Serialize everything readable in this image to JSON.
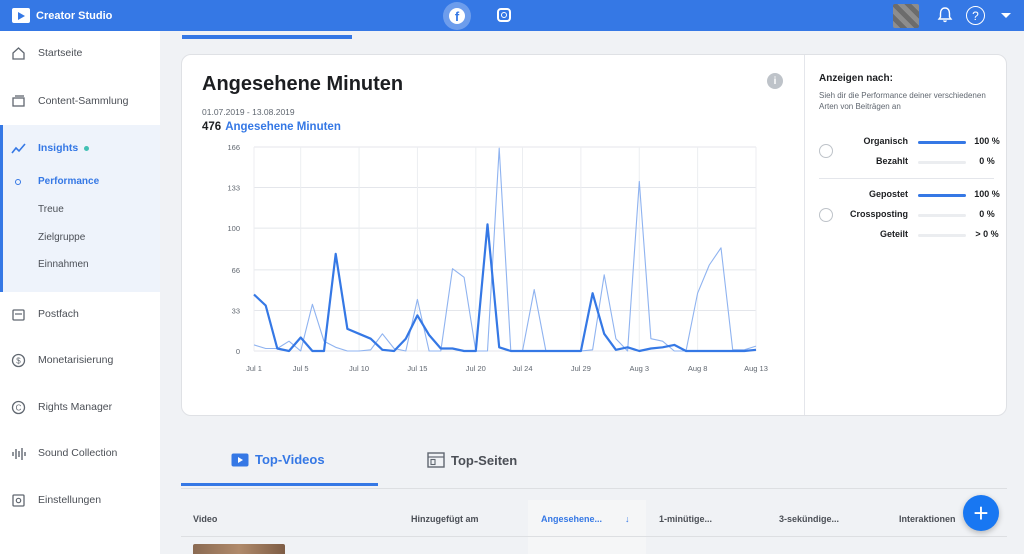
{
  "app": {
    "title": "Creator Studio",
    "platforms": [
      "facebook-icon",
      "instagram-icon"
    ],
    "help_label": "?"
  },
  "sidebar": {
    "items": [
      {
        "label": "Startseite",
        "icon": "home-icon"
      },
      {
        "label": "Content-Sammlung",
        "icon": "library-icon"
      },
      {
        "label": "Insights",
        "icon": "insights-icon"
      },
      {
        "label": "Postfach",
        "icon": "inbox-icon"
      },
      {
        "label": "Monetarisierung",
        "icon": "dollar-icon"
      },
      {
        "label": "Rights Manager",
        "icon": "copyright-icon"
      },
      {
        "label": "Sound Collection",
        "icon": "sound-icon"
      },
      {
        "label": "Einstellungen",
        "icon": "settings-icon"
      }
    ],
    "sub_items": [
      "Performance",
      "Treue",
      "Zielgruppe",
      "Einnahmen"
    ]
  },
  "card": {
    "title": "Angesehene Minuten",
    "info_label": "i",
    "date_range": "01.07.2019 - 13.08.2019",
    "total_value": "476",
    "total_label": "Angesehene Minuten"
  },
  "chart_data": {
    "type": "line",
    "ylim": [
      0,
      166
    ],
    "yticks": [
      0,
      33,
      66,
      100,
      133,
      166
    ],
    "xtick_labels": [
      "Jul 1",
      "Jul 5",
      "Jul 10",
      "Jul 15",
      "Jul 20",
      "Jul 24",
      "Jul 29",
      "Aug 3",
      "Aug 8",
      "Aug 13"
    ],
    "xtick_days": [
      0,
      4,
      9,
      14,
      19,
      23,
      28,
      33,
      38,
      43
    ],
    "grid": true,
    "colors": {
      "series1": "#3578e5",
      "series2": "#8fb3f0"
    },
    "series": [
      {
        "values": [
          46,
          37,
          2,
          0,
          11,
          0,
          0,
          79,
          18,
          14,
          10,
          1,
          0,
          10,
          29,
          13,
          2,
          2,
          0,
          0,
          103,
          3,
          0,
          0,
          0,
          0,
          0,
          0,
          0,
          47,
          14,
          1,
          3,
          0,
          2,
          3,
          5,
          0,
          0,
          0,
          0,
          0,
          0,
          1
        ]
      },
      {
        "values": [
          5,
          2,
          2,
          8,
          0,
          38,
          8,
          3,
          0,
          0,
          1,
          14,
          2,
          0,
          42,
          0,
          0,
          67,
          60,
          0,
          0,
          165,
          0,
          0,
          50,
          0,
          0,
          0,
          0,
          1,
          62,
          10,
          0,
          138,
          10,
          8,
          0,
          0,
          47,
          70,
          84,
          1,
          1,
          4
        ]
      }
    ]
  },
  "filter_panel": {
    "title": "Anzeigen nach:",
    "description": "Sieh dir die Performance deiner verschiedenen Arten von Beiträgen an",
    "group1": [
      {
        "label": "Organisch",
        "value_text": "100 %",
        "fraction": 1.0
      },
      {
        "label": "Bezahlt",
        "value_text": "0 %",
        "fraction": 0.0
      }
    ],
    "group2": [
      {
        "label": "Gepostet",
        "value_text": "100 %",
        "fraction": 1.0
      },
      {
        "label": "Crossposting",
        "value_text": "0 %",
        "fraction": 0.0
      },
      {
        "label": "Geteilt",
        "value_text": "> 0 %",
        "fraction": 0.0
      }
    ]
  },
  "tabs": {
    "videos": "Top-Videos",
    "pages": "Top-Seiten"
  },
  "table": {
    "columns": [
      "Video",
      "Hinzugefügt am",
      "Angesehene...",
      "1-minütige...",
      "3-sekündige...",
      "Interaktionen"
    ],
    "sort_indicator": "↓"
  },
  "fab_label": "+"
}
